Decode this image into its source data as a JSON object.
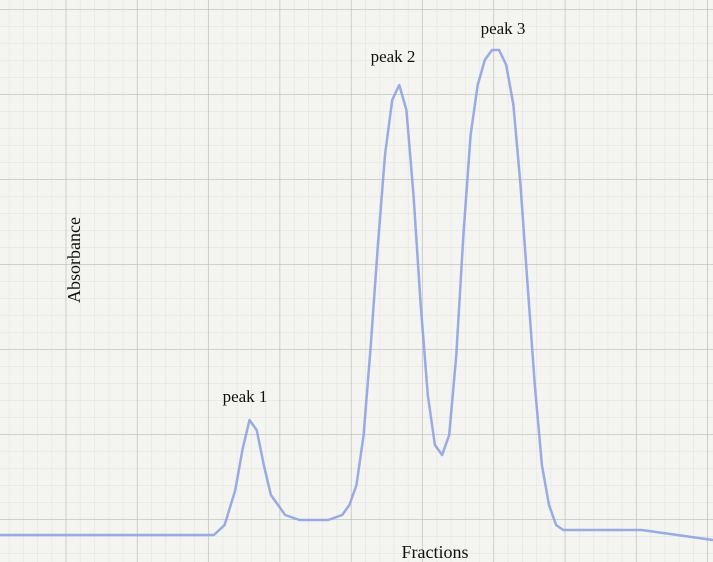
{
  "chart_data": {
    "type": "line",
    "x_label": "Fractions",
    "y_label": "Absorbance",
    "annotations": [
      "peak 1",
      "peak 2",
      "peak 3"
    ],
    "color": "#8ea3e0",
    "xlim": [
      0,
      100
    ],
    "ylim": [
      0,
      100
    ],
    "x": [
      0,
      10,
      20,
      30,
      31.5,
      33,
      34,
      35,
      36,
      37,
      38,
      40,
      42,
      44,
      46,
      48,
      49,
      50,
      51,
      52,
      53,
      54,
      55,
      56,
      57,
      58,
      59,
      60,
      61,
      62,
      63,
      64,
      65,
      66,
      67,
      68,
      69,
      70,
      71,
      72,
      73,
      74,
      75,
      76,
      77,
      78,
      79,
      82,
      86,
      90,
      95,
      100
    ],
    "values": [
      0,
      0,
      0,
      0,
      2,
      9,
      17,
      23,
      21,
      14,
      8,
      4,
      3,
      3,
      3,
      4,
      6,
      10,
      20,
      38,
      58,
      76,
      87,
      90,
      85,
      68,
      46,
      28,
      18,
      16,
      20,
      36,
      60,
      80,
      90,
      95,
      97,
      97,
      94,
      86,
      70,
      50,
      30,
      14,
      6,
      2,
      1,
      1,
      1,
      1,
      0,
      -1
    ]
  }
}
